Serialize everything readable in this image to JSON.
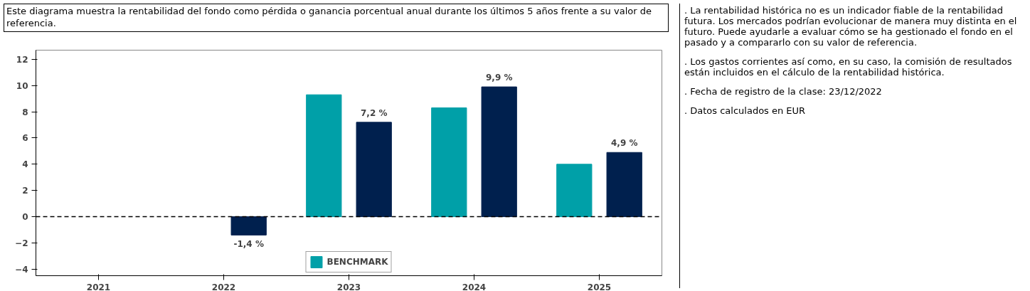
{
  "chart_data": {
    "type": "bar",
    "title": "Este diagrama muestra la rentabilidad del fondo como pérdida o ganancia porcentual anual durante los últimos 5 años frente a su valor de referencia.",
    "categories": [
      "2021",
      "2022",
      "2023",
      "2024",
      "2025"
    ],
    "series": [
      {
        "name": "BENCHMARK",
        "color": "#00a0a8",
        "values": [
          null,
          null,
          9.3,
          8.3,
          4.0
        ]
      },
      {
        "color": "#00204e",
        "values": [
          null,
          -1.4,
          7.2,
          9.9,
          4.9
        ],
        "value_labels": [
          null,
          "-1,4 %",
          "7,2 %",
          "9,9 %",
          "4,9 %"
        ]
      }
    ],
    "ylim": [
      -4.5,
      12.7
    ],
    "yticks": [
      -4,
      -2,
      0,
      2,
      4,
      6,
      8,
      10,
      12
    ],
    "grid": false,
    "legend": "bottom",
    "ref_lines": [
      {
        "axis": "y",
        "value": 0,
        "color": "#000000",
        "line_style": "dashed"
      }
    ],
    "annotations": [
      ". La rentabilidad histórica no es un indicador fiable de la rentabilidad futura. Los mercados podrían evolucionar de manera muy distinta en el futuro. Puede ayudarle a evaluar cómo se ha gestionado el fondo en el pasado y a compararlo con su valor de referencia.",
      ". Los gastos corrientes así como, en su caso, la comisión de resultados están incluidos en el cálculo de la rentabilidad histórica.",
      ". Fecha de registro de la clase: 23/12/2022",
      ". Datos calculados en EUR"
    ]
  }
}
